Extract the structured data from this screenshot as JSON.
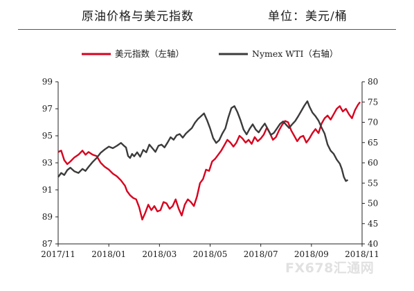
{
  "header": {
    "title": "原油价格与美元指数",
    "unit": "单位：美元/桶"
  },
  "watermark": "FX678汇通网",
  "chart_data": {
    "type": "line",
    "x_ticks": [
      "2017/11",
      "2018/01",
      "2018/03",
      "2018/05",
      "2018/07",
      "2018/09",
      "2018/11"
    ],
    "left_axis": {
      "ticks": [
        "87",
        "89",
        "91",
        "93",
        "95",
        "97",
        "99"
      ],
      "lim": [
        87,
        99
      ]
    },
    "right_axis": {
      "ticks": [
        "40",
        "45",
        "50",
        "55",
        "60",
        "65",
        "70",
        "75",
        "80"
      ],
      "lim": [
        40,
        80
      ]
    },
    "series": [
      {
        "name": "美元指数（左轴）",
        "axis": "left",
        "color": "#d7001e",
        "points": [
          [
            0,
            93.8
          ],
          [
            3,
            93.9
          ],
          [
            6,
            93.2
          ],
          [
            9,
            92.9
          ],
          [
            12,
            93.1
          ],
          [
            16,
            93.4
          ],
          [
            20,
            93.6
          ],
          [
            24,
            93.9
          ],
          [
            27,
            93.6
          ],
          [
            30,
            93.8
          ],
          [
            34,
            93.6
          ],
          [
            38,
            93.5
          ],
          [
            42,
            93.0
          ],
          [
            46,
            92.7
          ],
          [
            50,
            92.5
          ],
          [
            54,
            92.2
          ],
          [
            58,
            92.0
          ],
          [
            62,
            91.7
          ],
          [
            66,
            91.3
          ],
          [
            68,
            90.9
          ],
          [
            71,
            90.6
          ],
          [
            74,
            90.4
          ],
          [
            77,
            90.3
          ],
          [
            80,
            89.7
          ],
          [
            83,
            88.8
          ],
          [
            86,
            89.3
          ],
          [
            89,
            89.9
          ],
          [
            92,
            89.5
          ],
          [
            95,
            89.8
          ],
          [
            98,
            89.4
          ],
          [
            101,
            89.5
          ],
          [
            104,
            90.1
          ],
          [
            107,
            90.0
          ],
          [
            110,
            89.6
          ],
          [
            113,
            89.8
          ],
          [
            116,
            90.3
          ],
          [
            119,
            89.6
          ],
          [
            122,
            89.1
          ],
          [
            125,
            89.9
          ],
          [
            128,
            90.3
          ],
          [
            131,
            90.1
          ],
          [
            134,
            89.8
          ],
          [
            137,
            90.5
          ],
          [
            140,
            91.5
          ],
          [
            143,
            91.8
          ],
          [
            146,
            92.5
          ],
          [
            149,
            92.4
          ],
          [
            152,
            93.1
          ],
          [
            155,
            93.3
          ],
          [
            158,
            93.6
          ],
          [
            161,
            93.9
          ],
          [
            164,
            94.3
          ],
          [
            167,
            94.7
          ],
          [
            170,
            94.5
          ],
          [
            173,
            94.2
          ],
          [
            176,
            94.5
          ],
          [
            179,
            95.0
          ],
          [
            182,
            94.8
          ],
          [
            185,
            94.5
          ],
          [
            188,
            94.7
          ],
          [
            191,
            94.4
          ],
          [
            194,
            94.9
          ],
          [
            197,
            94.6
          ],
          [
            200,
            94.8
          ],
          [
            203,
            95.1
          ],
          [
            206,
            95.6
          ],
          [
            209,
            95.2
          ],
          [
            212,
            94.7
          ],
          [
            215,
            94.9
          ],
          [
            218,
            95.4
          ],
          [
            221,
            95.8
          ],
          [
            224,
            96.1
          ],
          [
            227,
            96.0
          ],
          [
            230,
            95.4
          ],
          [
            233,
            95.0
          ],
          [
            236,
            94.6
          ],
          [
            239,
            94.9
          ],
          [
            242,
            95.0
          ],
          [
            245,
            94.5
          ],
          [
            248,
            94.8
          ],
          [
            251,
            95.2
          ],
          [
            254,
            95.5
          ],
          [
            257,
            95.2
          ],
          [
            260,
            95.9
          ],
          [
            263,
            96.3
          ],
          [
            266,
            96.5
          ],
          [
            269,
            96.2
          ],
          [
            272,
            96.6
          ],
          [
            275,
            97.0
          ],
          [
            278,
            97.2
          ],
          [
            281,
            96.8
          ],
          [
            284,
            97.0
          ],
          [
            287,
            96.6
          ],
          [
            290,
            96.3
          ],
          [
            293,
            96.9
          ],
          [
            296,
            97.3
          ],
          [
            298,
            97.5
          ]
        ]
      },
      {
        "name": "Nymex WTI（右轴）",
        "axis": "right",
        "color": "#3b3b3b",
        "points": [
          [
            0,
            56.5
          ],
          [
            3,
            57.5
          ],
          [
            6,
            57.0
          ],
          [
            9,
            58.2
          ],
          [
            12,
            58.8
          ],
          [
            16,
            57.9
          ],
          [
            20,
            57.5
          ],
          [
            24,
            58.5
          ],
          [
            27,
            58.0
          ],
          [
            30,
            59.0
          ],
          [
            34,
            60.2
          ],
          [
            38,
            61.2
          ],
          [
            42,
            62.5
          ],
          [
            46,
            63.3
          ],
          [
            50,
            64.0
          ],
          [
            54,
            63.6
          ],
          [
            58,
            64.2
          ],
          [
            62,
            64.9
          ],
          [
            65,
            64.2
          ],
          [
            67,
            63.8
          ],
          [
            69,
            61.7
          ],
          [
            71,
            61.2
          ],
          [
            73,
            62.2
          ],
          [
            75,
            61.6
          ],
          [
            78,
            62.6
          ],
          [
            81,
            61.5
          ],
          [
            84,
            63.2
          ],
          [
            87,
            62.6
          ],
          [
            90,
            64.5
          ],
          [
            93,
            63.6
          ],
          [
            96,
            62.7
          ],
          [
            99,
            64.2
          ],
          [
            102,
            64.5
          ],
          [
            105,
            63.8
          ],
          [
            108,
            65.0
          ],
          [
            111,
            66.3
          ],
          [
            114,
            65.7
          ],
          [
            117,
            66.8
          ],
          [
            120,
            67.1
          ],
          [
            123,
            66.2
          ],
          [
            126,
            67.2
          ],
          [
            129,
            67.9
          ],
          [
            132,
            68.6
          ],
          [
            135,
            69.9
          ],
          [
            138,
            70.8
          ],
          [
            141,
            71.5
          ],
          [
            144,
            72.2
          ],
          [
            147,
            70.5
          ],
          [
            150,
            68.5
          ],
          [
            153,
            66.1
          ],
          [
            156,
            64.9
          ],
          [
            159,
            65.6
          ],
          [
            162,
            67.2
          ],
          [
            165,
            68.5
          ],
          [
            168,
            71.2
          ],
          [
            171,
            73.5
          ],
          [
            174,
            74.0
          ],
          [
            177,
            72.5
          ],
          [
            180,
            70.5
          ],
          [
            183,
            68.2
          ],
          [
            186,
            67.0
          ],
          [
            189,
            68.4
          ],
          [
            192,
            69.5
          ],
          [
            195,
            68.2
          ],
          [
            198,
            67.5
          ],
          [
            201,
            68.7
          ],
          [
            204,
            69.7
          ],
          [
            207,
            68.3
          ],
          [
            210,
            66.9
          ],
          [
            213,
            67.4
          ],
          [
            216,
            68.5
          ],
          [
            219,
            69.6
          ],
          [
            222,
            70.2
          ],
          [
            225,
            69.4
          ],
          [
            228,
            68.6
          ],
          [
            231,
            69.5
          ],
          [
            234,
            70.3
          ],
          [
            237,
            71.5
          ],
          [
            240,
            72.8
          ],
          [
            243,
            74.1
          ],
          [
            246,
            75.2
          ],
          [
            248,
            73.9
          ],
          [
            251,
            72.4
          ],
          [
            254,
            71.5
          ],
          [
            257,
            70.4
          ],
          [
            260,
            68.7
          ],
          [
            263,
            67.2
          ],
          [
            266,
            64.5
          ],
          [
            269,
            63.0
          ],
          [
            272,
            62.2
          ],
          [
            275,
            60.8
          ],
          [
            278,
            59.8
          ],
          [
            280,
            58.5
          ],
          [
            282,
            56.5
          ],
          [
            284,
            55.5
          ],
          [
            286,
            55.8
          ]
        ]
      }
    ]
  }
}
